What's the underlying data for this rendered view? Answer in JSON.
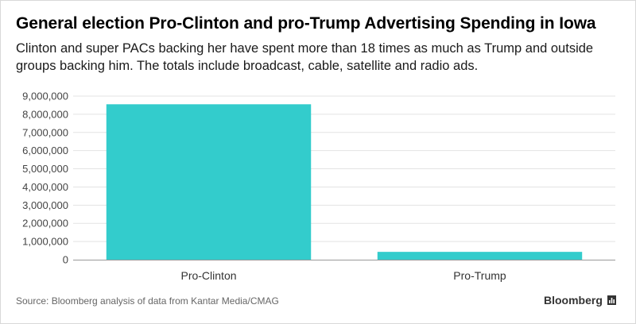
{
  "header": {
    "title": "General election Pro-Clinton and pro-Trump Advertising Spending in Iowa",
    "subtitle": "Clinton and super PACs backing her have spent more than 18 times as much as Trump and outside groups backing him. The totals include broadcast, cable, satellite and radio ads."
  },
  "footer": {
    "source": "Source: Bloomberg analysis of data from Kantar Media/CMAG",
    "brand": "Bloomberg"
  },
  "colors": {
    "bar": "#33cccc",
    "grid": "#e3e3e3",
    "axis": "#999999"
  },
  "chart_data": {
    "type": "bar",
    "title": "General election Pro-Clinton and pro-Trump Advertising Spending in Iowa",
    "categories": [
      "Pro-Clinton",
      "Pro-Trump"
    ],
    "values": [
      8550000,
      430000
    ],
    "ylim": [
      0,
      9000000
    ],
    "yticks": [
      0,
      1000000,
      2000000,
      3000000,
      4000000,
      5000000,
      6000000,
      7000000,
      8000000,
      9000000
    ],
    "ytick_labels": [
      "0",
      "1,000,000",
      "2,000,000",
      "3,000,000",
      "4,000,000",
      "5,000,000",
      "6,000,000",
      "7,000,000",
      "8,000,000",
      "9,000,000"
    ],
    "grid": true,
    "legend": "none"
  }
}
